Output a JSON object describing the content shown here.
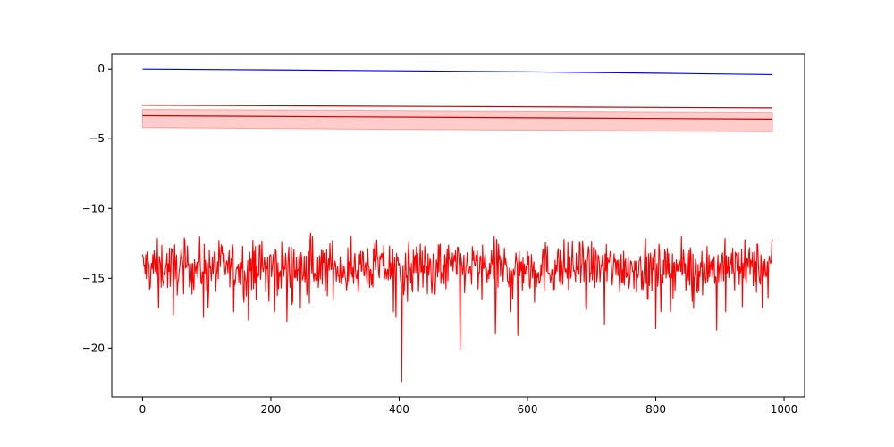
{
  "chart_data": {
    "type": "line",
    "title": "",
    "xlabel": "",
    "ylabel": "",
    "xlim": [
      -48,
      1032
    ],
    "ylim": [
      -23.5,
      1.1
    ],
    "grid": false,
    "x_ticks": [
      0,
      200,
      400,
      600,
      800,
      1000
    ],
    "x_tick_labels": [
      "0",
      "200",
      "400",
      "600",
      "800",
      "1000"
    ],
    "y_ticks": [
      0,
      -5,
      -10,
      -15,
      -20
    ],
    "y_tick_labels": [
      "0",
      "−5",
      "−10",
      "−15",
      "−20"
    ],
    "series": [
      {
        "kind": "line",
        "color": "#0000ff",
        "x": [
          0,
          200,
          400,
          600,
          800,
          982
        ],
        "y": [
          0.0,
          -0.06,
          -0.13,
          -0.2,
          -0.3,
          -0.4
        ]
      },
      {
        "kind": "line",
        "color": "#cc0000",
        "x": [
          0,
          982
        ],
        "y": [
          -2.6,
          -2.8
        ]
      },
      {
        "kind": "band",
        "color": "#ff0000",
        "x": [
          0,
          982
        ],
        "upper": [
          -2.9,
          -3.1
        ],
        "lower": [
          -4.2,
          -4.5
        ]
      },
      {
        "kind": "line",
        "color": "#cc0000",
        "x": [
          0,
          982
        ],
        "y": [
          -3.35,
          -3.6
        ]
      },
      {
        "kind": "noise",
        "color": "#ff0000",
        "x_start": 0,
        "x_end": 982,
        "mean": -14.2,
        "spread": 0.9,
        "y_max": -11.8,
        "y_min": -22.4,
        "spikes": [
          {
            "x": 25,
            "y": -17.1
          },
          {
            "x": 48,
            "y": -17.6
          },
          {
            "x": 95,
            "y": -17.8
          },
          {
            "x": 165,
            "y": -18.0
          },
          {
            "x": 225,
            "y": -18.1
          },
          {
            "x": 262,
            "y": -11.8
          },
          {
            "x": 395,
            "y": -17.8
          },
          {
            "x": 404,
            "y": -22.4
          },
          {
            "x": 495,
            "y": -20.1
          },
          {
            "x": 550,
            "y": -19.0
          },
          {
            "x": 585,
            "y": -19.1
          },
          {
            "x": 720,
            "y": -18.3
          },
          {
            "x": 800,
            "y": -18.6
          },
          {
            "x": 895,
            "y": -18.7
          },
          {
            "x": 975,
            "y": -16.4
          },
          {
            "x": 982,
            "y": -12.2
          }
        ]
      }
    ]
  }
}
